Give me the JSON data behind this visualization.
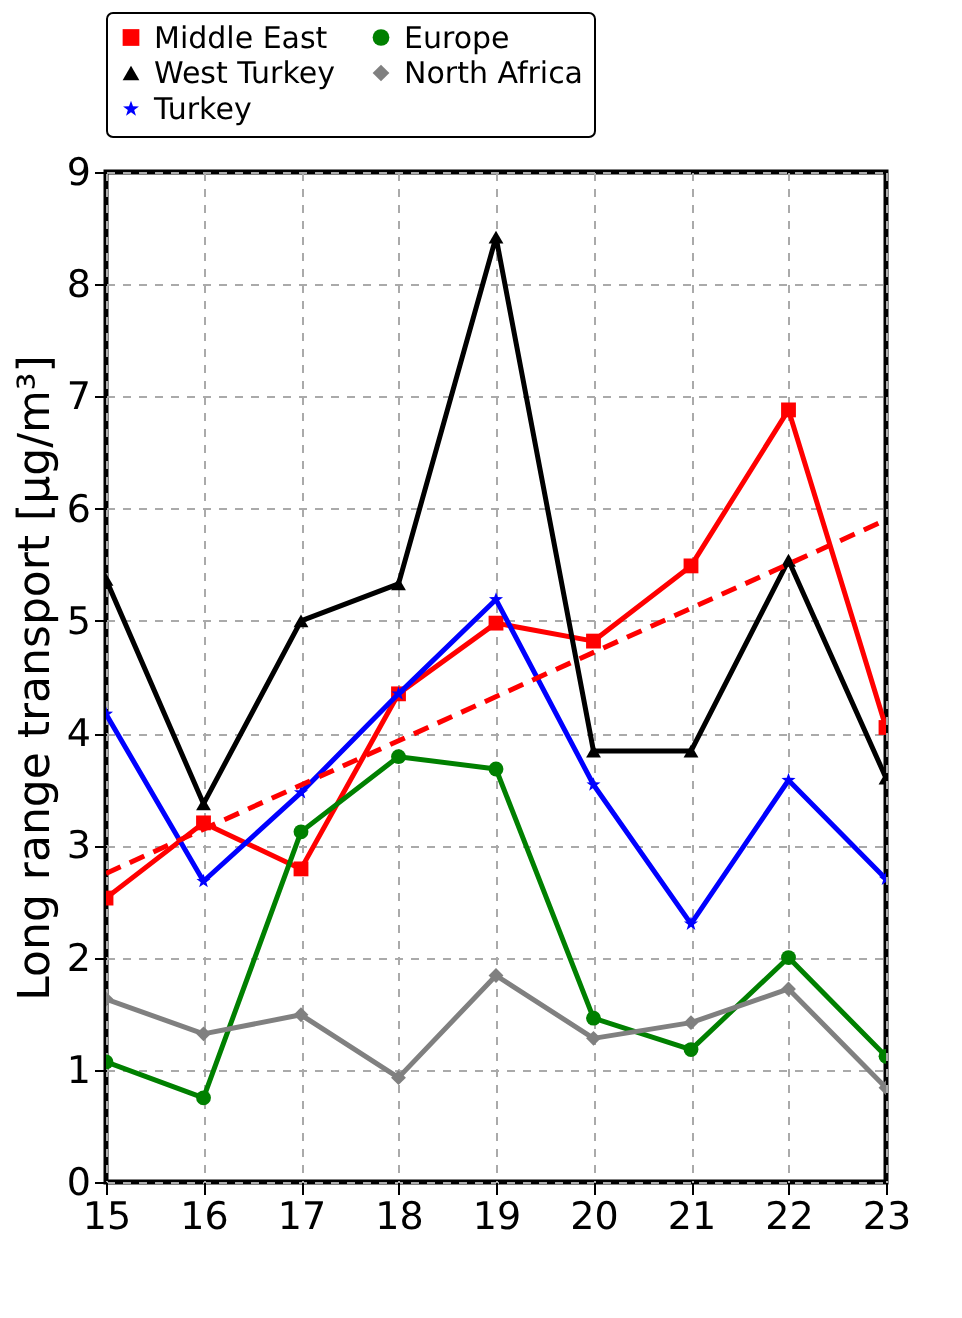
{
  "chart_data": {
    "type": "line",
    "ylabel": "Long range transport [μg/m³]",
    "x": [
      15,
      16,
      17,
      18,
      19,
      20,
      21,
      22,
      23
    ],
    "xlim": [
      15,
      23
    ],
    "xticks": [
      15,
      16,
      17,
      18,
      19,
      20,
      21,
      22,
      23
    ],
    "ylim": [
      0,
      9
    ],
    "yticks": [
      0,
      1,
      2,
      3,
      4,
      5,
      6,
      7,
      8,
      9
    ],
    "grid": true,
    "legend": "top",
    "series": [
      {
        "name": "Middle East",
        "color": "#ff0000",
        "marker": "square",
        "values": [
          2.53,
          3.2,
          2.79,
          4.35,
          4.98,
          4.82,
          5.49,
          6.88,
          4.05
        ]
      },
      {
        "name": "West Turkey",
        "color": "#000000",
        "marker": "triangle",
        "values": [
          5.37,
          3.37,
          5.0,
          5.33,
          8.42,
          3.84,
          3.84,
          5.54,
          3.6
        ]
      },
      {
        "name": "Turkey",
        "color": "#0000ff",
        "marker": "star",
        "values": [
          4.17,
          2.68,
          3.47,
          4.35,
          5.19,
          3.54,
          2.3,
          3.58,
          2.7
        ]
      },
      {
        "name": "Europe",
        "color": "#008000",
        "marker": "circle",
        "values": [
          1.07,
          0.75,
          3.12,
          3.79,
          3.68,
          1.46,
          1.18,
          2.0,
          1.12
        ]
      },
      {
        "name": "North Africa",
        "color": "#808080",
        "marker": "diamond",
        "values": [
          1.63,
          1.32,
          1.49,
          0.93,
          1.84,
          1.28,
          1.42,
          1.72,
          0.84
        ]
      },
      {
        "color": "#ff0000",
        "marker": "none",
        "line_style": "dashed",
        "x": [
          15,
          23
        ],
        "values": [
          2.75,
          5.9
        ]
      }
    ]
  }
}
